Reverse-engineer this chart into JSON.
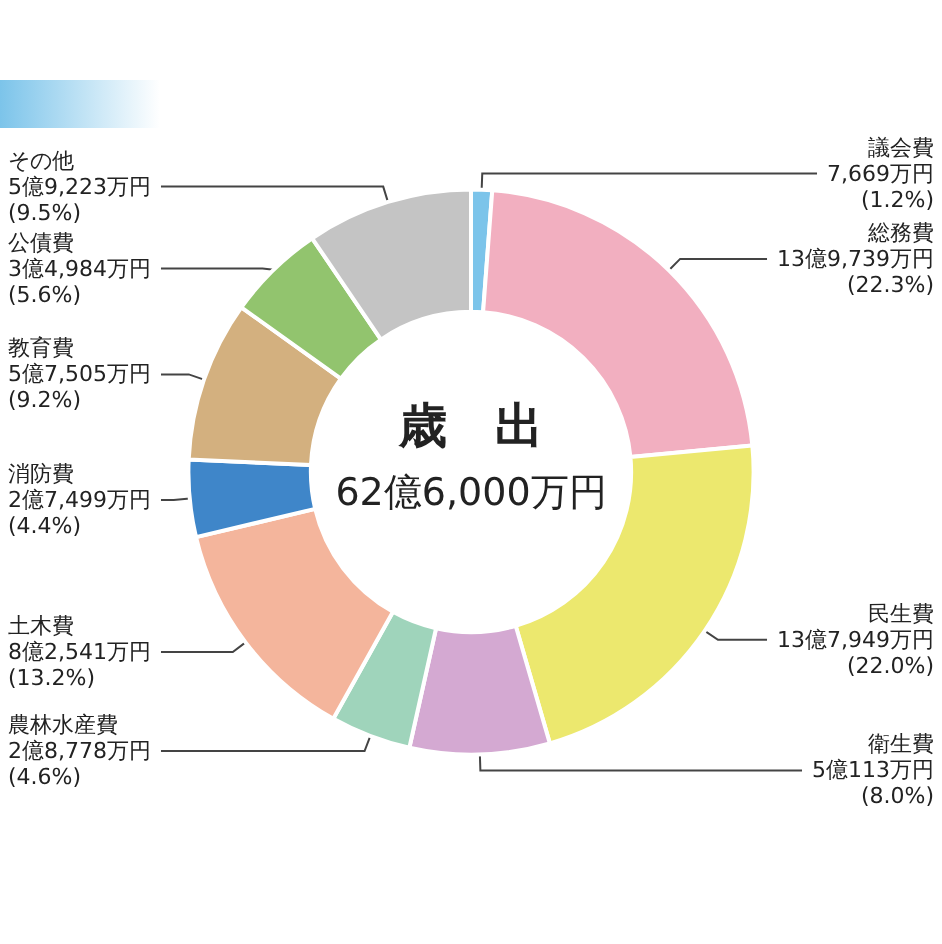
{
  "chart_data": {
    "type": "donut",
    "title": "歳　出",
    "subtitle": "62億6,000万円",
    "categories": [
      "議会費",
      "総務費",
      "民生費",
      "衛生費",
      "農林水産費",
      "土木費",
      "消防費",
      "教育費",
      "公債費",
      "その他"
    ],
    "values": [
      1.2,
      22.3,
      22.0,
      8.0,
      4.6,
      13.2,
      4.4,
      9.2,
      5.6,
      9.5
    ],
    "value_labels": [
      "7,669万円\n(1.2%)",
      "13億9,739万円\n(22.3%)",
      "13億7,949万円\n(22.0%)",
      "5億113万円\n(8.0%)",
      "2億8,778万円\n(4.6%)",
      "8億2,541万円\n(13.2%)",
      "2億7,499万円\n(4.4%)",
      "5億7,505万円\n(9.2%)",
      "3億4,984万円\n(5.6%)",
      "5億9,223万円\n(9.5%)"
    ],
    "colors": [
      "#7cc4ea",
      "#f2afc0",
      "#ece86e",
      "#d4a9d2",
      "#9fd4bb",
      "#f4b59c",
      "#3f86c9",
      "#d3b07f",
      "#92c46e",
      "#c4c4c4"
    ],
    "legend": false
  }
}
